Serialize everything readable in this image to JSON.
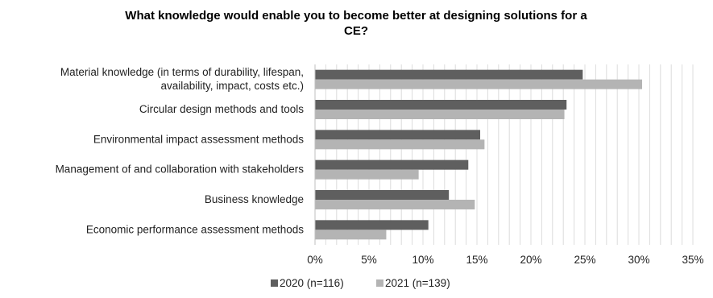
{
  "chart_data": {
    "type": "bar",
    "orientation": "horizontal",
    "title": "What knowledge would enable you to become better at designing solutions for a CE?",
    "title_lines": [
      "What knowledge would enable you to become better at designing solutions for a",
      "CE?"
    ],
    "categories": [
      {
        "lines": [
          "Material knowledge (in terms of durability, lifespan,",
          "availability, impact, costs etc.)"
        ]
      },
      {
        "lines": [
          "Circular design methods and tools"
        ]
      },
      {
        "lines": [
          "Environmental impact assessment methods"
        ]
      },
      {
        "lines": [
          "Management of and collaboration with stakeholders"
        ]
      },
      {
        "lines": [
          "Business knowledge"
        ]
      },
      {
        "lines": [
          "Economic performance assessment methods"
        ]
      }
    ],
    "series": [
      {
        "name": "2020 (n=116)",
        "color": "#5f5f5f",
        "values": [
          24.8,
          23.3,
          15.3,
          14.2,
          12.4,
          10.5
        ]
      },
      {
        "name": "2021 (n=139)",
        "color": "#b4b4b4",
        "values": [
          30.3,
          23.1,
          15.7,
          9.6,
          14.8,
          6.6
        ]
      }
    ],
    "xlim": [
      0,
      35
    ],
    "xticks": [
      "0%",
      "5%",
      "10%",
      "15%",
      "20%",
      "25%",
      "30%",
      "35%"
    ],
    "grid": true,
    "legend_position": "bottom"
  }
}
